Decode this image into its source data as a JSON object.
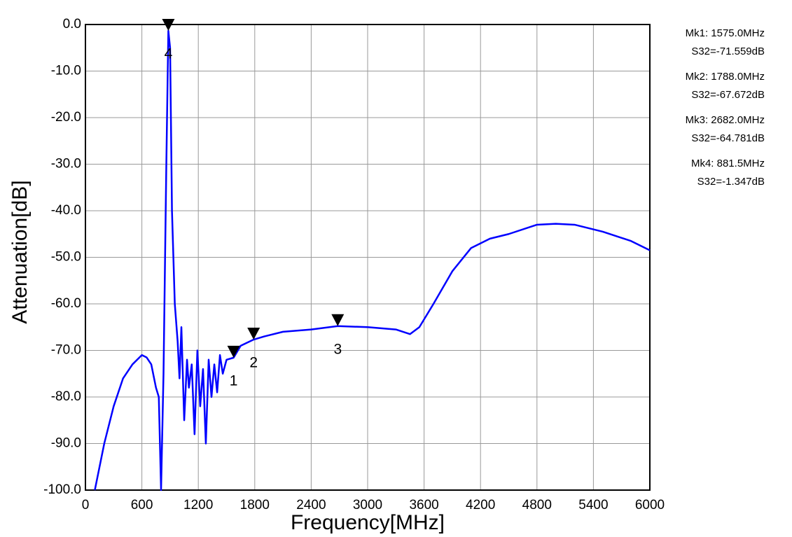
{
  "chart_data": {
    "type": "line",
    "xlabel": "Frequency[MHz]",
    "ylabel": "Attenuation[dB]",
    "x": [
      100,
      200,
      300,
      400,
      500,
      600,
      650,
      700,
      750,
      780,
      804,
      830,
      860,
      881.5,
      900,
      920,
      950,
      980,
      1000,
      1020,
      1050,
      1080,
      1100,
      1130,
      1160,
      1190,
      1220,
      1250,
      1280,
      1310,
      1340,
      1370,
      1400,
      1430,
      1460,
      1500,
      1575,
      1650,
      1788,
      1900,
      2100,
      2400,
      2682,
      3000,
      3300,
      3450,
      3550,
      3700,
      3900,
      4100,
      4300,
      4500,
      4800,
      5000,
      5200,
      5500,
      5800,
      6000
    ],
    "values": [
      -100,
      -90,
      -82,
      -76,
      -73,
      -71,
      -71.5,
      -73,
      -78,
      -80,
      -100,
      -75,
      -30,
      -1.347,
      -5,
      -40,
      -60,
      -68,
      -76,
      -65,
      -85,
      -72,
      -78,
      -73,
      -88,
      -70,
      -82,
      -74,
      -90,
      -72,
      -80,
      -73,
      -79,
      -71,
      -75,
      -72,
      -71.559,
      -69,
      -67.672,
      -67,
      -66,
      -65.5,
      -64.781,
      -65,
      -65.5,
      -66.5,
      -65,
      -60,
      -53,
      -48,
      -46,
      -45,
      -43,
      -42.8,
      -43,
      -44.5,
      -46.5,
      -48.5
    ],
    "color": "#0000ff",
    "xlim": [
      0,
      6000
    ],
    "ylim": [
      -100,
      0
    ],
    "xticks": [
      0,
      600,
      1200,
      1800,
      2400,
      3000,
      3600,
      4200,
      4800,
      5400,
      6000
    ],
    "yticks": [
      {
        "value": 0,
        "label": "0.0"
      },
      {
        "value": -10,
        "label": "-10.0"
      },
      {
        "value": -20,
        "label": "-20.0"
      },
      {
        "value": -30,
        "label": "-30.0"
      },
      {
        "value": -40,
        "label": "-40.0"
      },
      {
        "value": -50,
        "label": "-50.0"
      },
      {
        "value": -60,
        "label": "-60.0"
      },
      {
        "value": -70,
        "label": "-70.0"
      },
      {
        "value": -80,
        "label": "-80.0"
      },
      {
        "value": -90,
        "label": "-90.0"
      },
      {
        "value": -100,
        "label": "-100.0"
      }
    ],
    "grid": true,
    "markers": [
      {
        "label": "1",
        "x": 1575.0,
        "y": -71.559
      },
      {
        "label": "2",
        "x": 1788.0,
        "y": -67.672
      },
      {
        "label": "3",
        "x": 2682.0,
        "y": -64.781
      },
      {
        "label": "4",
        "x": 881.5,
        "y": -1.347
      }
    ],
    "readouts": [
      {
        "freq": "Mk1: 1575.0MHz",
        "value": "S32=-71.559dB"
      },
      {
        "freq": "Mk2: 1788.0MHz",
        "value": "S32=-67.672dB"
      },
      {
        "freq": "Mk3: 2682.0MHz",
        "value": "S32=-64.781dB"
      },
      {
        "freq": "Mk4:  881.5MHz",
        "value": "S32=-1.347dB"
      }
    ]
  }
}
